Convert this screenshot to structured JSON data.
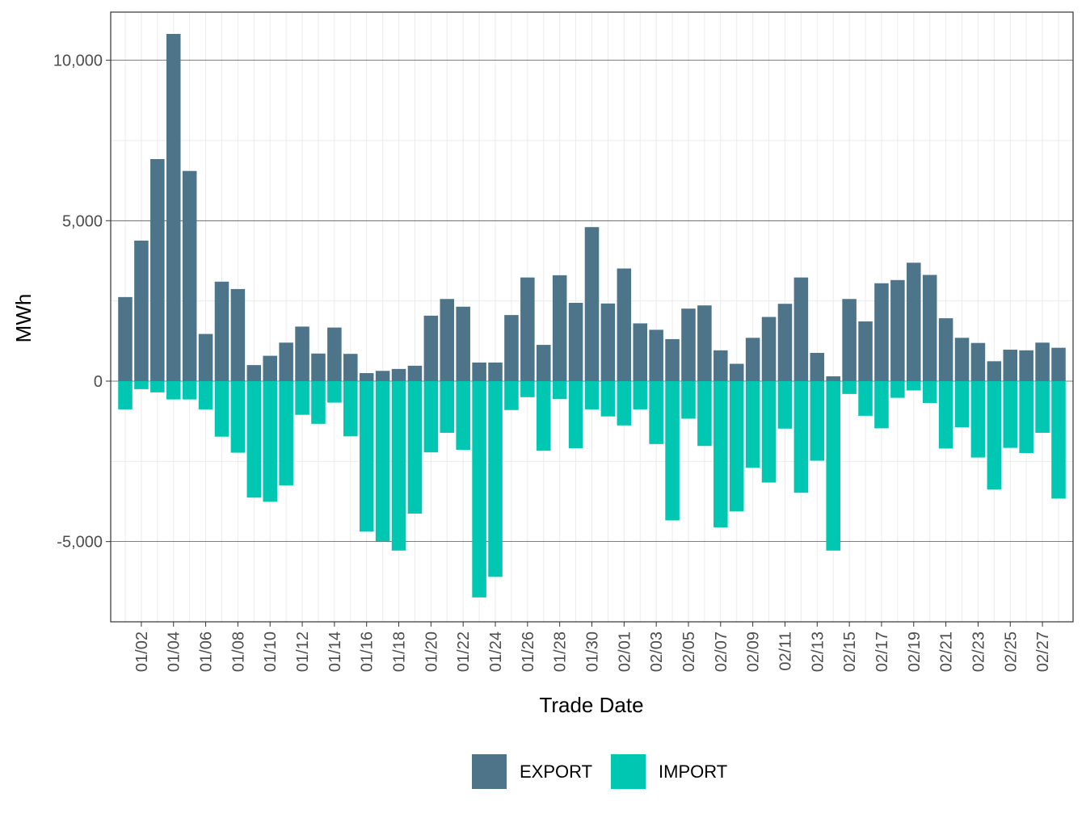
{
  "chart_data": {
    "type": "bar",
    "stacked_diverging": true,
    "xlabel": "Trade Date",
    "ylabel": "MWh",
    "ylim": [
      -7500,
      11500
    ],
    "y_ticks": [
      -5000,
      0,
      5000,
      10000
    ],
    "y_tick_labels": [
      "-5,000",
      "0",
      "5,000",
      "10,000"
    ],
    "x_tick_labels": [
      "01/02",
      "01/04",
      "01/06",
      "01/08",
      "01/10",
      "01/12",
      "01/14",
      "01/16",
      "01/18",
      "01/20",
      "01/22",
      "01/24",
      "01/26",
      "01/28",
      "01/30",
      "02/01",
      "02/03",
      "02/05",
      "02/07",
      "02/09",
      "02/11",
      "02/13",
      "02/15",
      "02/17",
      "02/19",
      "02/21",
      "02/23",
      "02/25",
      "02/27"
    ],
    "categories": [
      "01/01",
      "01/02",
      "01/03",
      "01/04",
      "01/05",
      "01/06",
      "01/07",
      "01/08",
      "01/09",
      "01/10",
      "01/11",
      "01/12",
      "01/13",
      "01/14",
      "01/15",
      "01/16",
      "01/17",
      "01/18",
      "01/19",
      "01/20",
      "01/21",
      "01/22",
      "01/23",
      "01/24",
      "01/25",
      "01/26",
      "01/27",
      "01/28",
      "01/29",
      "01/30",
      "01/31",
      "02/01",
      "02/02",
      "02/03",
      "02/04",
      "02/05",
      "02/06",
      "02/07",
      "02/08",
      "02/09",
      "02/10",
      "02/11",
      "02/12",
      "02/13",
      "02/14",
      "02/15",
      "02/16",
      "02/17",
      "02/18",
      "02/19",
      "02/20",
      "02/21",
      "02/22",
      "02/23",
      "02/24",
      "02/25",
      "02/26",
      "02/27",
      "02/28"
    ],
    "series": [
      {
        "name": "EXPORT",
        "color": "#4E7489",
        "values": [
          2620,
          4380,
          6920,
          10820,
          6550,
          1470,
          3100,
          2870,
          500,
          790,
          1200,
          1700,
          860,
          1670,
          850,
          250,
          320,
          380,
          480,
          2040,
          2560,
          2320,
          580,
          580,
          2060,
          3230,
          1130,
          3300,
          2440,
          4800,
          2420,
          3510,
          1800,
          1600,
          1310,
          2260,
          2360,
          960,
          540,
          1350,
          2000,
          2410,
          3230,
          880,
          150,
          2560,
          1860,
          3050,
          3150,
          3690,
          3310,
          1960,
          1350,
          1190,
          620,
          980,
          960,
          1200,
          1040
        ]
      },
      {
        "name": "IMPORT",
        "color": "#00C7B1",
        "values": [
          -880,
          -250,
          -350,
          -570,
          -570,
          -880,
          -1730,
          -2230,
          -3630,
          -3760,
          -3250,
          -1050,
          -1330,
          -670,
          -1720,
          -4690,
          -4990,
          -5280,
          -4130,
          -2220,
          -1610,
          -2140,
          -6740,
          -6100,
          -900,
          -500,
          -2170,
          -560,
          -2090,
          -880,
          -1100,
          -1380,
          -880,
          -1960,
          -4340,
          -1170,
          -2020,
          -4560,
          -4060,
          -2700,
          -3160,
          -1480,
          -3480,
          -2480,
          -5280,
          -400,
          -1080,
          -1470,
          -520,
          -290,
          -680,
          -2100,
          -1440,
          -2380,
          -3380,
          -2080,
          -2240,
          -1610,
          -3660
        ]
      }
    ],
    "legend": {
      "position": "bottom",
      "entries": [
        "EXPORT",
        "IMPORT"
      ]
    }
  }
}
